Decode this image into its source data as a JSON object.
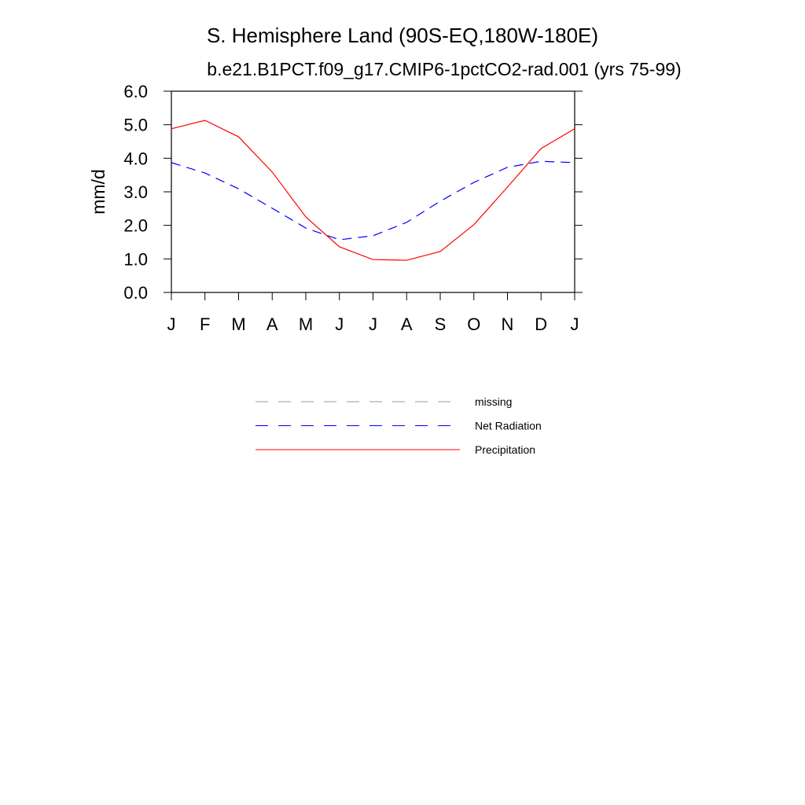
{
  "chart_data": {
    "type": "line",
    "title": "S. Hemisphere Land (90S-EQ,180W-180E)",
    "subtitle": "b.e21.B1PCT.f09_g17.CMIP6-1pctCO2-rad.001 (yrs 75-99)",
    "y_label": "mm/d",
    "categories": [
      "J",
      "F",
      "M",
      "A",
      "M",
      "J",
      "J",
      "A",
      "S",
      "O",
      "N",
      "D",
      "J"
    ],
    "series": [
      {
        "name": "missing",
        "color": "#999999",
        "dashed": true,
        "values": [
          null,
          null,
          null,
          null,
          null,
          null,
          null,
          null,
          null,
          null,
          null,
          null,
          null
        ]
      },
      {
        "name": "Net Radiation",
        "color": "#0000ff",
        "dashed": true,
        "values": [
          3.87,
          3.56,
          3.09,
          2.51,
          1.92,
          1.57,
          1.69,
          2.09,
          2.72,
          3.28,
          3.73,
          3.91,
          3.87
        ]
      },
      {
        "name": "Precipitation",
        "color": "#ff0000",
        "dashed": false,
        "values": [
          4.88,
          5.13,
          4.64,
          3.59,
          2.25,
          1.36,
          0.98,
          0.96,
          1.22,
          2.02,
          3.14,
          4.29,
          4.88
        ]
      }
    ],
    "ylim": [
      0,
      6
    ],
    "yticks": [
      {
        "value": 0,
        "label": "0.0"
      },
      {
        "value": 1,
        "label": "1.0"
      },
      {
        "value": 2,
        "label": "2.0"
      },
      {
        "value": 3,
        "label": "3.0"
      },
      {
        "value": 4,
        "label": "4.0"
      },
      {
        "value": 5,
        "label": "5.0"
      },
      {
        "value": 6,
        "label": "6.0"
      }
    ],
    "grid": false
  }
}
